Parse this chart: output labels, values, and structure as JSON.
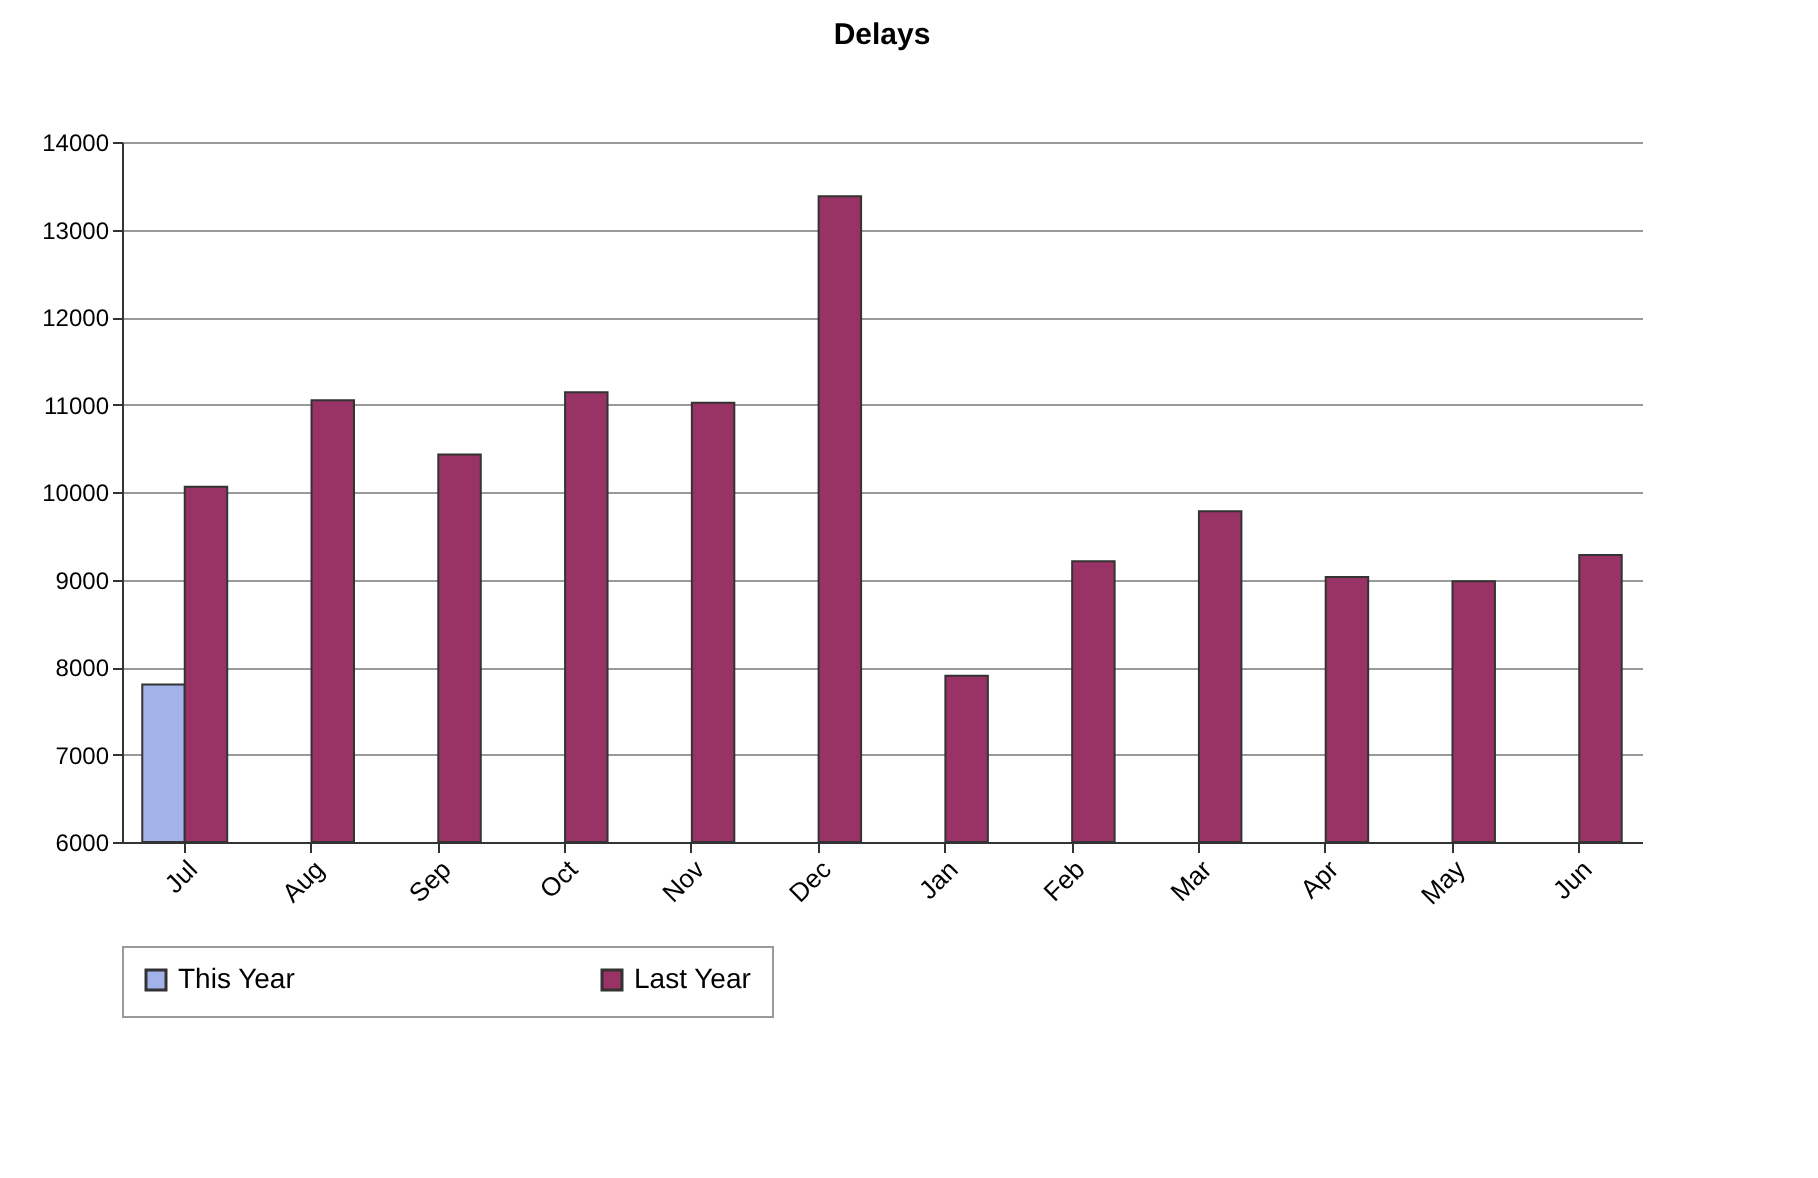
{
  "chart_data": {
    "type": "bar",
    "title": "Delays",
    "categories": [
      "Jul",
      "Aug",
      "Sep",
      "Oct",
      "Nov",
      "Dec",
      "Jan",
      "Feb",
      "Mar",
      "Apr",
      "May",
      "Jun"
    ],
    "series": [
      {
        "name": "This Year",
        "color": "#a3b3ea",
        "values": [
          7800,
          null,
          null,
          null,
          null,
          null,
          null,
          null,
          null,
          null,
          null,
          null
        ]
      },
      {
        "name": "Last Year",
        "color": "#993366",
        "values": [
          10060,
          11050,
          10430,
          11140,
          11020,
          13380,
          7900,
          9210,
          9780,
          9030,
          8980,
          9280
        ]
      }
    ],
    "ylim": [
      6000,
      14000
    ],
    "yticks": [
      6000,
      7000,
      8000,
      9000,
      10000,
      11000,
      12000,
      13000,
      14000
    ],
    "grid": "y",
    "legend": "bottom"
  }
}
